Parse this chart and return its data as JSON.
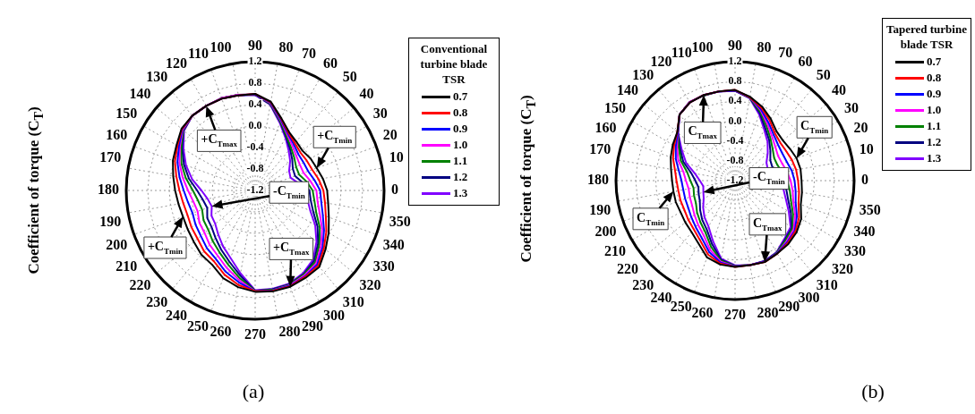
{
  "chart_data": [
    {
      "type": "radar",
      "title": "(a)",
      "ylabel": "Coefficient of torque (C$_{T}$)",
      "legend_title": "Conventional turbine blade TSR",
      "legend": "right",
      "grid": true,
      "marker": "none",
      "line_style": "solid",
      "categories": [
        "90",
        "80",
        "70",
        "60",
        "50",
        "40",
        "30",
        "20",
        "10",
        "0",
        "350",
        "340",
        "330",
        "320",
        "310",
        "300",
        "290",
        "280",
        "270",
        "260",
        "250",
        "240",
        "230",
        "220",
        "210",
        "200",
        "190",
        "180",
        "170",
        "160",
        "150",
        "140",
        "130",
        "120",
        "110",
        "100"
      ],
      "ylim": [
        -1.2,
        1.2
      ],
      "yticks": [
        -1.2,
        -0.8,
        -0.4,
        {
          "value": 0,
          "label": "0.0"
        },
        0.4,
        0.8,
        1.2
      ],
      "series": [
        {
          "name": "0.7",
          "color": "#000000",
          "values": [
            0.6,
            0.48,
            0.23,
            0.06,
            -0.01,
            -0.05,
            -0.01,
            0.02,
            0.08,
            0.14,
            0.18,
            0.26,
            0.38,
            0.51,
            0.66,
            0.68,
            0.71,
            0.71,
            0.69,
            0.63,
            0.54,
            0.4,
            0.36,
            0.29,
            0.25,
            0.23,
            0.25,
            0.29,
            0.35,
            0.43,
            0.49,
            0.59,
            0.62,
            0.62,
            0.62,
            0.6
          ]
        },
        {
          "name": "0.8",
          "color": "#ff0000",
          "values": [
            0.6,
            0.47,
            0.22,
            0.04,
            -0.05,
            -0.1,
            -0.09,
            -0.07,
            0.0,
            0.07,
            0.12,
            0.2,
            0.33,
            0.47,
            0.63,
            0.66,
            0.7,
            0.7,
            0.68,
            0.59,
            0.47,
            0.33,
            0.28,
            0.2,
            0.17,
            0.14,
            0.16,
            0.21,
            0.29,
            0.39,
            0.47,
            0.58,
            0.62,
            0.62,
            0.62,
            0.6
          ]
        },
        {
          "name": "0.9",
          "color": "#0000ff",
          "values": [
            0.59,
            0.46,
            0.2,
            0.02,
            -0.08,
            -0.15,
            -0.16,
            -0.15,
            -0.08,
            0.01,
            0.05,
            0.14,
            0.28,
            0.44,
            0.6,
            0.65,
            0.69,
            0.69,
            0.68,
            0.54,
            0.41,
            0.27,
            0.2,
            0.12,
            0.08,
            0.04,
            0.07,
            0.13,
            0.23,
            0.34,
            0.44,
            0.57,
            0.62,
            0.62,
            0.62,
            0.6
          ]
        },
        {
          "name": "1.0",
          "color": "#ff00ff",
          "values": [
            0.59,
            0.45,
            0.19,
            0.0,
            -0.12,
            -0.2,
            -0.24,
            -0.24,
            -0.16,
            -0.06,
            -0.02,
            0.08,
            0.24,
            0.4,
            0.57,
            0.63,
            0.68,
            0.69,
            0.68,
            0.5,
            0.34,
            0.2,
            0.12,
            0.03,
            0.0,
            -0.06,
            -0.03,
            0.05,
            0.17,
            0.3,
            0.42,
            0.56,
            0.62,
            0.62,
            0.63,
            0.61
          ]
        },
        {
          "name": "1.1",
          "color": "#008000",
          "values": [
            0.59,
            0.44,
            0.17,
            -0.03,
            -0.16,
            -0.25,
            -0.32,
            -0.33,
            -0.23,
            -0.13,
            -0.08,
            0.01,
            0.19,
            0.36,
            0.54,
            0.61,
            0.67,
            0.68,
            0.67,
            0.46,
            0.27,
            0.13,
            0.03,
            -0.06,
            -0.09,
            -0.15,
            -0.12,
            -0.04,
            0.11,
            0.26,
            0.39,
            0.55,
            0.62,
            0.62,
            0.63,
            0.61
          ]
        },
        {
          "name": "1.2",
          "color": "#000080",
          "values": [
            0.58,
            0.43,
            0.16,
            -0.05,
            -0.19,
            -0.3,
            -0.39,
            -0.41,
            -0.31,
            -0.19,
            -0.15,
            -0.05,
            0.14,
            0.33,
            0.51,
            0.6,
            0.66,
            0.67,
            0.67,
            0.41,
            0.21,
            0.07,
            -0.05,
            -0.14,
            -0.17,
            -0.25,
            -0.21,
            -0.12,
            0.05,
            0.21,
            0.37,
            0.54,
            0.62,
            0.62,
            0.63,
            0.61
          ]
        },
        {
          "name": "1.3",
          "color": "#8000ff",
          "values": [
            0.58,
            0.42,
            0.14,
            -0.07,
            -0.23,
            -0.35,
            -0.47,
            -0.5,
            -0.39,
            -0.26,
            -0.21,
            -0.11,
            0.09,
            0.29,
            0.48,
            0.58,
            0.65,
            0.66,
            0.66,
            0.37,
            0.14,
            0.0,
            -0.13,
            -0.23,
            -0.26,
            -0.34,
            -0.3,
            -0.2,
            -0.01,
            0.17,
            0.34,
            0.53,
            0.62,
            0.62,
            0.63,
            0.61
          ]
        }
      ],
      "annotations": [
        "+C$_{Tmax}$",
        "+C$_{Tmin}$",
        "+C$_{Tmin}$",
        "-C$_{Tmin}$",
        "+C$_{Tmax}$"
      ]
    },
    {
      "type": "radar",
      "title": "(b)",
      "ylabel": "Coefficient of torque (C$_{T}$)",
      "legend_title": "Tapered turbine blade TSR",
      "legend": "right",
      "grid": true,
      "marker": "none",
      "line_style": "solid",
      "categories": [
        "90",
        "80",
        "70",
        "60",
        "50",
        "40",
        "30",
        "20",
        "10",
        "0",
        "350",
        "340",
        "330",
        "320",
        "310",
        "300",
        "290",
        "280",
        "270",
        "260",
        "250",
        "240",
        "230",
        "220",
        "210",
        "200",
        "190",
        "180",
        "170",
        "160",
        "150",
        "140",
        "130",
        "120",
        "110",
        "100"
      ],
      "ylim": [
        -1.2,
        1.2
      ],
      "yticks": [
        -1.2,
        -0.8,
        -0.4,
        {
          "value": 0,
          "label": "0.0"
        },
        0.4,
        0.8,
        1.2
      ],
      "series": [
        {
          "name": "0.7",
          "color": "#000000",
          "values": [
            0.63,
            0.52,
            0.39,
            0.24,
            0.1,
            0.06,
            0.08,
            0.12,
            0.14,
            0.14,
            0.17,
            0.21,
            0.34,
            0.42,
            0.47,
            0.5,
            0.55,
            0.53,
            0.54,
            0.52,
            0.45,
            0.27,
            0.16,
            0.11,
            0.07,
            0.07,
            0.06,
            0.07,
            0.11,
            0.18,
            0.25,
            0.32,
            0.54,
            0.62,
            0.64,
            0.63
          ]
        },
        {
          "name": "0.8",
          "color": "#ff0000",
          "values": [
            0.63,
            0.51,
            0.36,
            0.2,
            0.05,
            -0.01,
            -0.01,
            0.02,
            0.05,
            0.07,
            0.11,
            0.16,
            0.29,
            0.39,
            0.45,
            0.5,
            0.55,
            0.53,
            0.54,
            0.5,
            0.39,
            0.2,
            0.09,
            0.03,
            -0.02,
            -0.03,
            -0.04,
            -0.02,
            0.03,
            0.13,
            0.22,
            0.32,
            0.54,
            0.62,
            0.64,
            0.63
          ]
        },
        {
          "name": "0.9",
          "color": "#0000ff",
          "values": [
            0.62,
            0.51,
            0.33,
            0.15,
            0.01,
            -0.07,
            -0.1,
            -0.09,
            -0.04,
            0.0,
            0.04,
            0.1,
            0.24,
            0.37,
            0.43,
            0.49,
            0.54,
            0.53,
            0.53,
            0.48,
            0.33,
            0.14,
            0.03,
            -0.05,
            -0.11,
            -0.13,
            -0.14,
            -0.12,
            -0.05,
            0.07,
            0.18,
            0.31,
            0.54,
            0.62,
            0.64,
            0.63
          ]
        },
        {
          "name": "1.0",
          "color": "#ff00ff",
          "values": [
            0.62,
            0.51,
            0.31,
            0.11,
            -0.04,
            -0.14,
            -0.2,
            -0.19,
            -0.14,
            -0.08,
            -0.02,
            0.05,
            0.2,
            0.34,
            0.41,
            0.49,
            0.54,
            0.53,
            0.53,
            0.46,
            0.28,
            0.07,
            -0.04,
            -0.13,
            -0.2,
            -0.23,
            -0.25,
            -0.21,
            -0.14,
            0.02,
            0.15,
            0.31,
            0.54,
            0.63,
            0.64,
            0.63
          ]
        },
        {
          "name": "1.1",
          "color": "#008000",
          "values": [
            0.62,
            0.5,
            0.28,
            0.07,
            -0.09,
            -0.21,
            -0.29,
            -0.29,
            -0.23,
            -0.15,
            -0.08,
            0.0,
            0.15,
            0.31,
            0.38,
            0.48,
            0.54,
            0.53,
            0.52,
            0.44,
            0.22,
            0.0,
            -0.11,
            -0.2,
            -0.29,
            -0.32,
            -0.35,
            -0.3,
            -0.22,
            -0.04,
            0.11,
            0.31,
            0.54,
            0.63,
            0.63,
            0.63
          ]
        },
        {
          "name": "1.2",
          "color": "#000080",
          "values": [
            0.61,
            0.5,
            0.25,
            0.02,
            -0.13,
            -0.27,
            -0.38,
            -0.4,
            -0.32,
            -0.22,
            -0.15,
            -0.06,
            0.1,
            0.29,
            0.36,
            0.48,
            0.53,
            0.53,
            0.52,
            0.42,
            0.16,
            -0.06,
            -0.17,
            -0.28,
            -0.38,
            -0.42,
            -0.45,
            -0.4,
            -0.3,
            -0.09,
            0.08,
            0.3,
            0.54,
            0.63,
            0.63,
            0.63
          ]
        },
        {
          "name": "1.3",
          "color": "#8000ff",
          "values": [
            0.61,
            0.49,
            0.22,
            -0.02,
            -0.18,
            -0.34,
            -0.47,
            -0.5,
            -0.41,
            -0.29,
            -0.21,
            -0.11,
            0.05,
            0.26,
            0.34,
            0.47,
            0.53,
            0.53,
            0.51,
            0.4,
            0.1,
            -0.13,
            -0.24,
            -0.36,
            -0.47,
            -0.52,
            -0.55,
            -0.49,
            -0.38,
            -0.15,
            0.04,
            0.3,
            0.54,
            0.63,
            0.63,
            0.63
          ]
        }
      ],
      "annotations": [
        "C$_{Tmax}$",
        "C$_{Tmin}$",
        "C$_{Tmin}$",
        "-C$_{Tmin}$",
        "C$_{Tmax}$"
      ]
    }
  ]
}
